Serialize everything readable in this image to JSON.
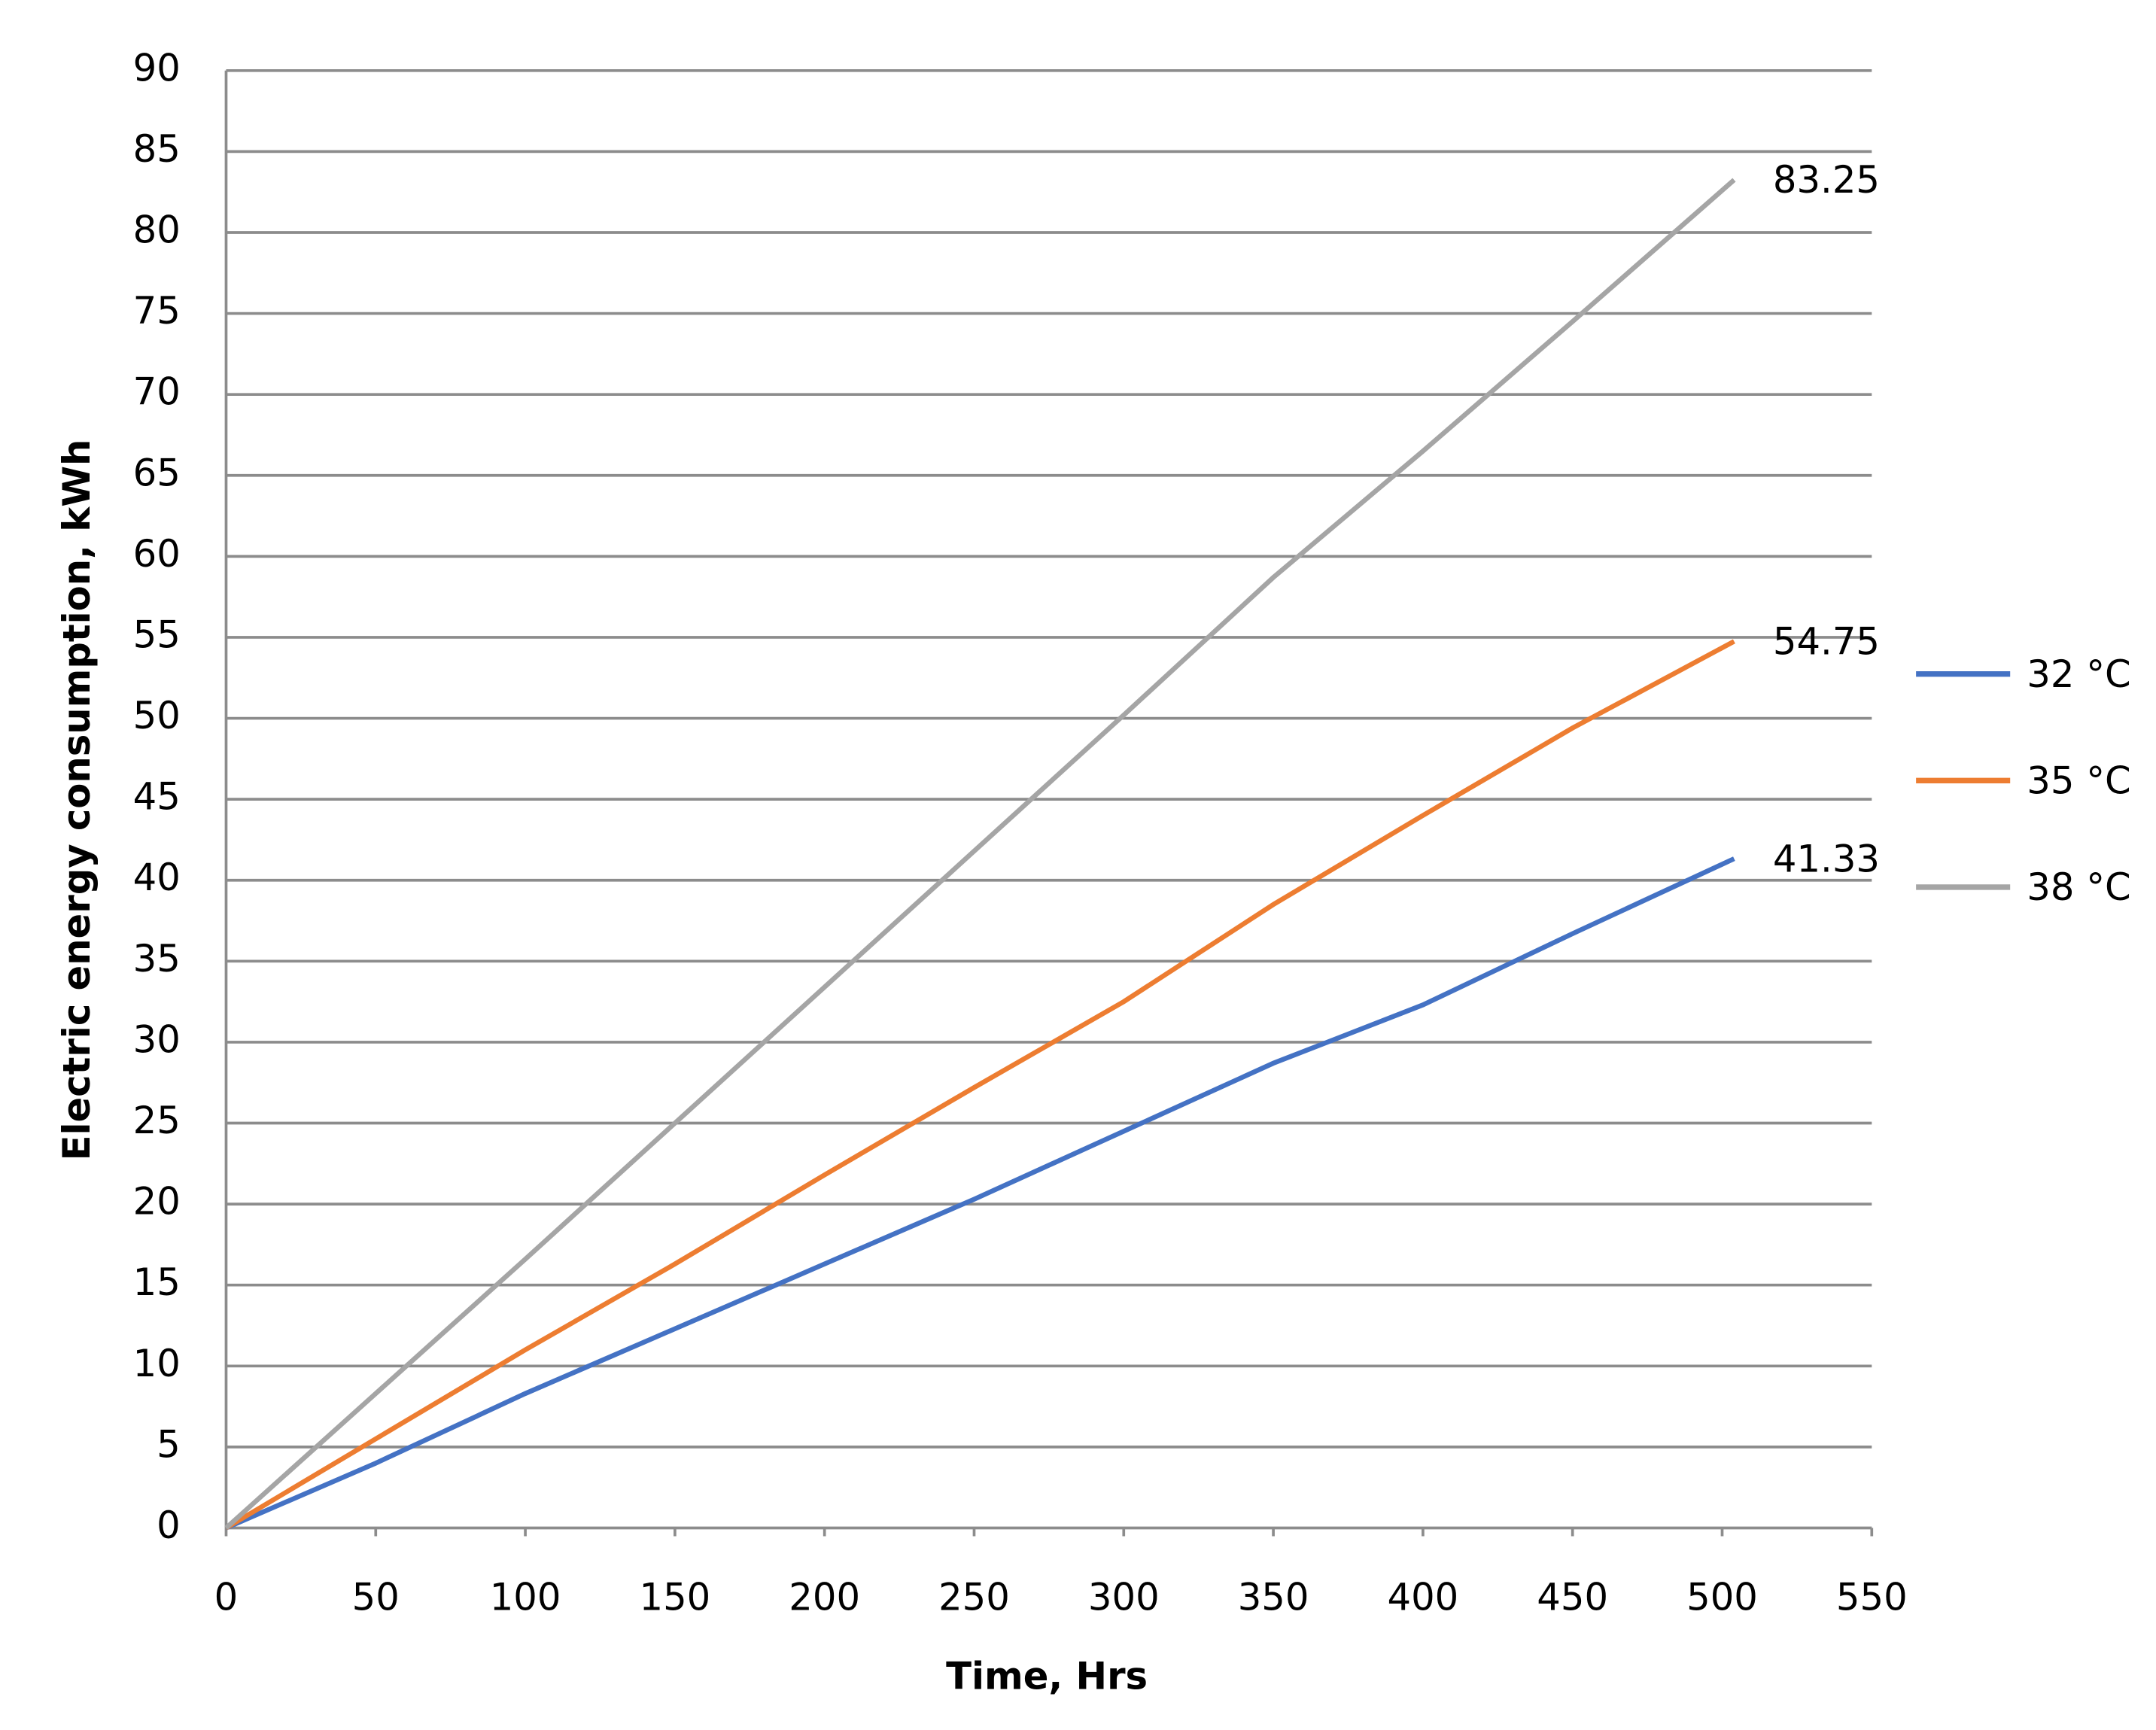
{
  "chart_data": {
    "type": "line",
    "x_label": "Time, Hrs",
    "y_label": "Electric energy consumption, kWh",
    "x": [
      0,
      50,
      100,
      150,
      200,
      250,
      300,
      350,
      400,
      450,
      504
    ],
    "series": [
      {
        "name": "32 °C",
        "color": "#4472c4",
        "values": [
          0,
          4,
          8.3,
          12.3,
          16.3,
          20.3,
          24.5,
          28.7,
          32.3,
          36.7,
          41.33
        ]
      },
      {
        "name": "35 °C",
        "color": "#ed7d31",
        "values": [
          0,
          5.5,
          11,
          16.3,
          21.8,
          27.2,
          32.5,
          38.5,
          44,
          49.4,
          54.75
        ]
      },
      {
        "name": "38 °C",
        "color": "#a5a5a5",
        "values": [
          0,
          8.3,
          16.6,
          25,
          33.4,
          41.8,
          50.2,
          58.7,
          66.5,
          74.5,
          83.25
        ]
      }
    ],
    "data_labels": "last",
    "xlim": [
      0,
      550
    ],
    "xticks": [
      0,
      50,
      100,
      150,
      200,
      250,
      300,
      350,
      400,
      450,
      500,
      550
    ],
    "ylim": [
      0,
      90
    ],
    "yticks": [
      0,
      5,
      10,
      15,
      20,
      25,
      30,
      35,
      40,
      45,
      50,
      55,
      60,
      65,
      70,
      75,
      80,
      85,
      90
    ],
    "grid": true,
    "legend": "right"
  }
}
